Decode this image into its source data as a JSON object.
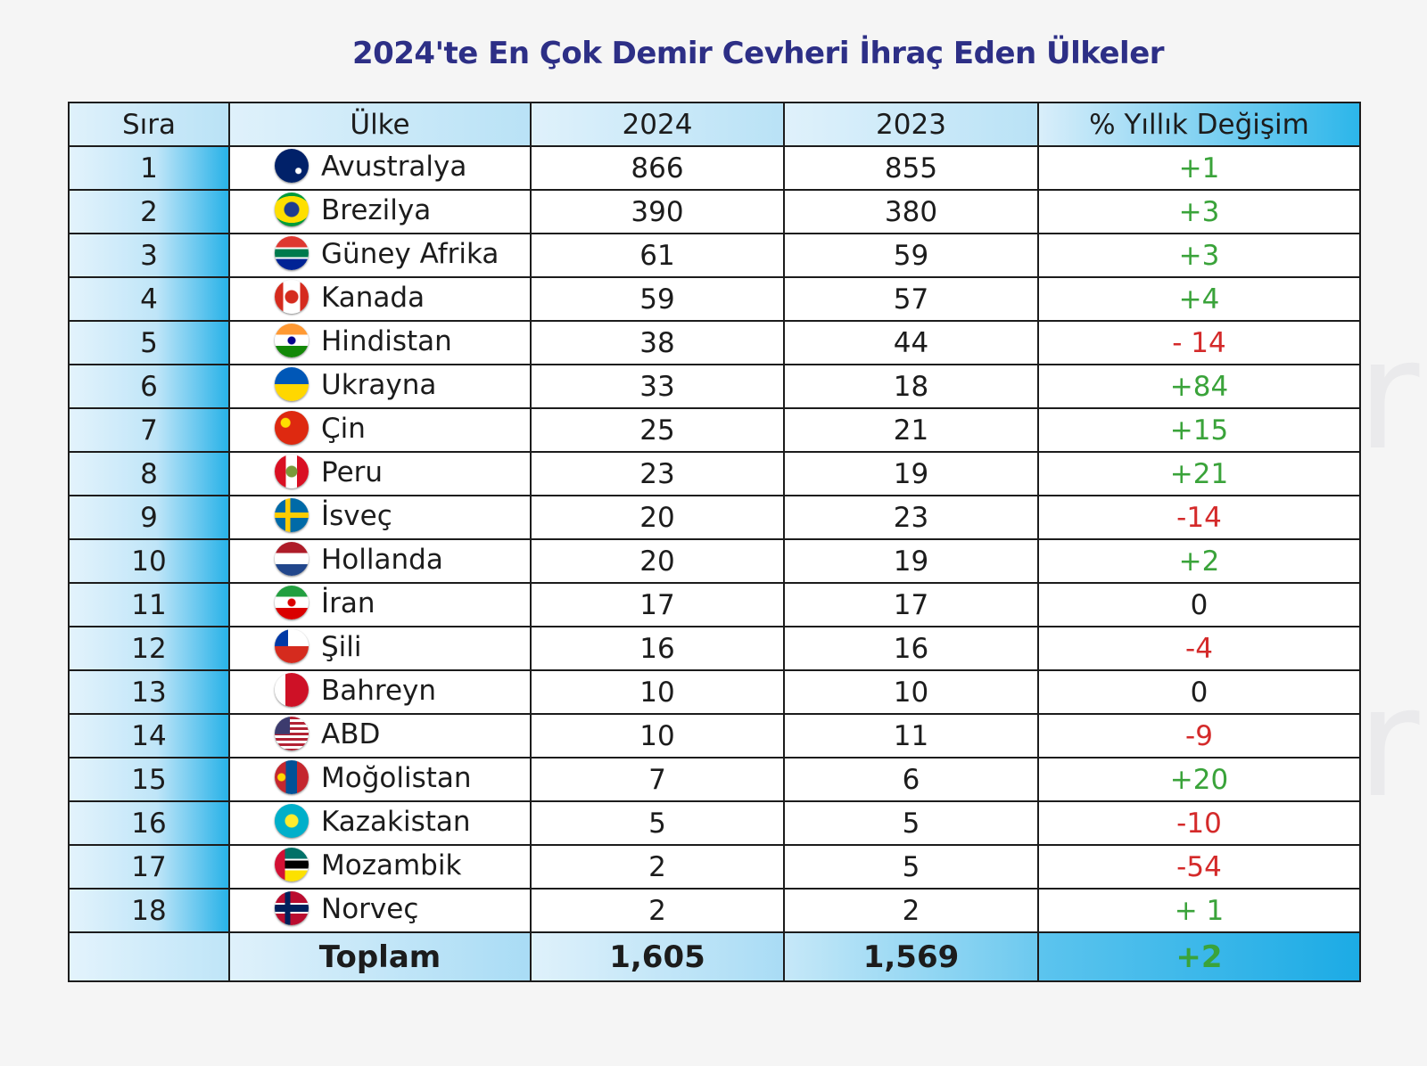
{
  "chart_data": {
    "type": "table",
    "title": "2024'te En Çok Demir Cevheri İhraç Eden Ülkeler",
    "columns": [
      "Sıra",
      "Ülke",
      "2024",
      "2023",
      "% Yıllık  Değişim"
    ],
    "rows": [
      {
        "rank": "1",
        "country": "Avustralya",
        "y2024": "866",
        "y2023": "855",
        "change": "+1",
        "sign": "pos",
        "flag": "australia-flag-icon"
      },
      {
        "rank": "2",
        "country": "Brezilya",
        "y2024": "390",
        "y2023": "380",
        "change": "+3",
        "sign": "pos",
        "flag": "brazil-flag-icon"
      },
      {
        "rank": "3",
        "country": "Güney Afrika",
        "y2024": "61",
        "y2023": "59",
        "change": "+3",
        "sign": "pos",
        "flag": "south-africa-flag-icon"
      },
      {
        "rank": "4",
        "country": "Kanada",
        "y2024": "59",
        "y2023": "57",
        "change": "+4",
        "sign": "pos",
        "flag": "canada-flag-icon"
      },
      {
        "rank": "5",
        "country": "Hindistan",
        "y2024": "38",
        "y2023": "44",
        "change": "- 14",
        "sign": "neg",
        "flag": "india-flag-icon"
      },
      {
        "rank": "6",
        "country": "Ukrayna",
        "y2024": "33",
        "y2023": "18",
        "change": "+84",
        "sign": "pos",
        "flag": "ukraine-flag-icon"
      },
      {
        "rank": "7",
        "country": "Çin",
        "y2024": "25",
        "y2023": "21",
        "change": "+15",
        "sign": "pos",
        "flag": "china-flag-icon"
      },
      {
        "rank": "8",
        "country": "Peru",
        "y2024": "23",
        "y2023": "19",
        "change": "+21",
        "sign": "pos",
        "flag": "peru-flag-icon"
      },
      {
        "rank": "9",
        "country": "İsveç",
        "y2024": "20",
        "y2023": "23",
        "change": "-14",
        "sign": "neg",
        "flag": "sweden-flag-icon"
      },
      {
        "rank": "10",
        "country": "Hollanda",
        "y2024": "20",
        "y2023": "19",
        "change": "+2",
        "sign": "pos",
        "flag": "netherlands-flag-icon"
      },
      {
        "rank": "11",
        "country": "İran",
        "y2024": "17",
        "y2023": "17",
        "change": "0",
        "sign": "zero",
        "flag": "iran-flag-icon"
      },
      {
        "rank": "12",
        "country": "Şili",
        "y2024": "16",
        "y2023": "16",
        "change": "-4",
        "sign": "neg",
        "flag": "chile-flag-icon"
      },
      {
        "rank": "13",
        "country": "Bahreyn",
        "y2024": "10",
        "y2023": "10",
        "change": "0",
        "sign": "zero",
        "flag": "bahrain-flag-icon"
      },
      {
        "rank": "14",
        "country": "ABD",
        "y2024": "10",
        "y2023": "11",
        "change": "-9",
        "sign": "neg",
        "flag": "usa-flag-icon"
      },
      {
        "rank": "15",
        "country": "Moğolistan",
        "y2024": "7",
        "y2023": "6",
        "change": "+20",
        "sign": "pos",
        "flag": "mongolia-flag-icon"
      },
      {
        "rank": "16",
        "country": "Kazakistan",
        "y2024": "5",
        "y2023": "5",
        "change": "-10",
        "sign": "neg",
        "flag": "kazakhstan-flag-icon"
      },
      {
        "rank": "17",
        "country": "Mozambik",
        "y2024": "2",
        "y2023": "5",
        "change": "-54",
        "sign": "neg",
        "flag": "mozambique-flag-icon"
      },
      {
        "rank": "18",
        "country": "Norveç",
        "y2024": "2",
        "y2023": "2",
        "change": "+ 1",
        "sign": "pos",
        "flag": "norway-flag-icon"
      }
    ],
    "total": {
      "label": "Toplam",
      "y2024": "1,605",
      "y2023": "1,569",
      "change": "+2"
    }
  },
  "watermark": "SteelRadar",
  "colors": {
    "title": "#2d2f86",
    "positive": "#3aa33a",
    "negative": "#d42a2a",
    "accent": "#28b2e8"
  }
}
